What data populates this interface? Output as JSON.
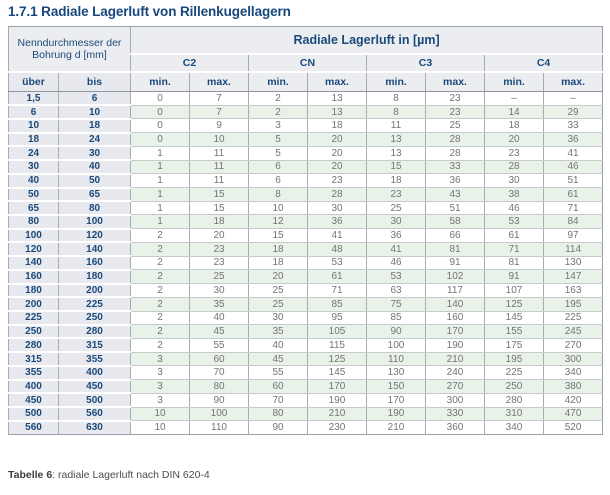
{
  "page": {
    "title": "1.7.1 Radiale Lagerluft von Rillenkugellagern"
  },
  "colors": {
    "accent_navy": "#17477c",
    "header_bg": "#ecedf0",
    "label_col_bg": "#e8e9ee",
    "alt_row_green": "#e9f2e9",
    "data_text": "#737476",
    "border_gray": "#a6acb3"
  },
  "table": {
    "row_group_header": "Nenndurchmesser der Bohrung d [mm]",
    "col_group_header": "Radiale Lagerluft in [µm]",
    "groups": [
      "C2",
      "CN",
      "C3",
      "C4"
    ],
    "sub_headers": {
      "over_label": "über",
      "to_label": "bis",
      "min_label": "min.",
      "max_label": "max."
    },
    "rows": [
      [
        "1,5",
        "6",
        "0",
        "7",
        "2",
        "13",
        "8",
        "23",
        "–",
        "–"
      ],
      [
        "6",
        "10",
        "0",
        "7",
        "2",
        "13",
        "8",
        "23",
        "14",
        "29"
      ],
      [
        "10",
        "18",
        "0",
        "9",
        "3",
        "18",
        "11",
        "25",
        "18",
        "33"
      ],
      [
        "18",
        "24",
        "0",
        "10",
        "5",
        "20",
        "13",
        "28",
        "20",
        "36"
      ],
      [
        "24",
        "30",
        "1",
        "11",
        "5",
        "20",
        "13",
        "28",
        "23",
        "41"
      ],
      [
        "30",
        "40",
        "1",
        "11",
        "6",
        "20",
        "15",
        "33",
        "28",
        "46"
      ],
      [
        "40",
        "50",
        "1",
        "11",
        "6",
        "23",
        "18",
        "36",
        "30",
        "51"
      ],
      [
        "50",
        "65",
        "1",
        "15",
        "8",
        "28",
        "23",
        "43",
        "38",
        "61"
      ],
      [
        "65",
        "80",
        "1",
        "15",
        "10",
        "30",
        "25",
        "51",
        "46",
        "71"
      ],
      [
        "80",
        "100",
        "1",
        "18",
        "12",
        "36",
        "30",
        "58",
        "53",
        "84"
      ],
      [
        "100",
        "120",
        "2",
        "20",
        "15",
        "41",
        "36",
        "66",
        "61",
        "97"
      ],
      [
        "120",
        "140",
        "2",
        "23",
        "18",
        "48",
        "41",
        "81",
        "71",
        "114"
      ],
      [
        "140",
        "160",
        "2",
        "23",
        "18",
        "53",
        "46",
        "91",
        "81",
        "130"
      ],
      [
        "160",
        "180",
        "2",
        "25",
        "20",
        "61",
        "53",
        "102",
        "91",
        "147"
      ],
      [
        "180",
        "200",
        "2",
        "30",
        "25",
        "71",
        "63",
        "117",
        "107",
        "163"
      ],
      [
        "200",
        "225",
        "2",
        "35",
        "25",
        "85",
        "75",
        "140",
        "125",
        "195"
      ],
      [
        "225",
        "250",
        "2",
        "40",
        "30",
        "95",
        "85",
        "160",
        "145",
        "225"
      ],
      [
        "250",
        "280",
        "2",
        "45",
        "35",
        "105",
        "90",
        "170",
        "155",
        "245"
      ],
      [
        "280",
        "315",
        "2",
        "55",
        "40",
        "115",
        "100",
        "190",
        "175",
        "270"
      ],
      [
        "315",
        "355",
        "3",
        "60",
        "45",
        "125",
        "110",
        "210",
        "195",
        "300"
      ],
      [
        "355",
        "400",
        "3",
        "70",
        "55",
        "145",
        "130",
        "240",
        "225",
        "340"
      ],
      [
        "400",
        "450",
        "3",
        "80",
        "60",
        "170",
        "150",
        "270",
        "250",
        "380"
      ],
      [
        "450",
        "500",
        "3",
        "90",
        "70",
        "190",
        "170",
        "300",
        "280",
        "420"
      ],
      [
        "500",
        "560",
        "10",
        "100",
        "80",
        "210",
        "190",
        "330",
        "310",
        "470"
      ],
      [
        "560",
        "630",
        "10",
        "110",
        "90",
        "230",
        "210",
        "360",
        "340",
        "520"
      ]
    ]
  },
  "caption": {
    "label": "Tabelle 6",
    "text": ": radiale Lagerluft nach DIN 620-4"
  }
}
